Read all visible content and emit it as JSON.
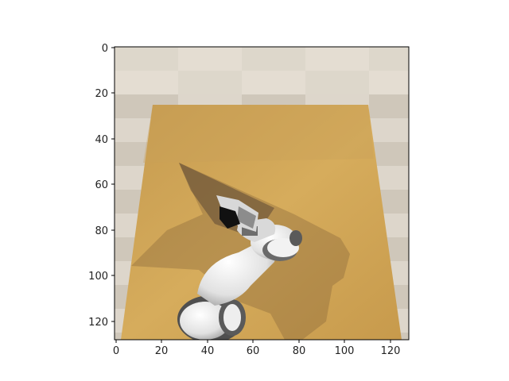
{
  "figure": {
    "x_ticks": [
      "0",
      "20",
      "40",
      "60",
      "80",
      "100",
      "120"
    ],
    "y_ticks": [
      "0",
      "20",
      "40",
      "60",
      "80",
      "100",
      "120"
    ],
    "x_range": [
      0,
      128
    ],
    "y_range": [
      0,
      128
    ],
    "y_direction": "down",
    "grid": false
  },
  "scene": {
    "description_icons": [
      "robot-arm-icon",
      "gripper-icon",
      "wooden-table-icon",
      "checkered-floor-icon"
    ]
  }
}
